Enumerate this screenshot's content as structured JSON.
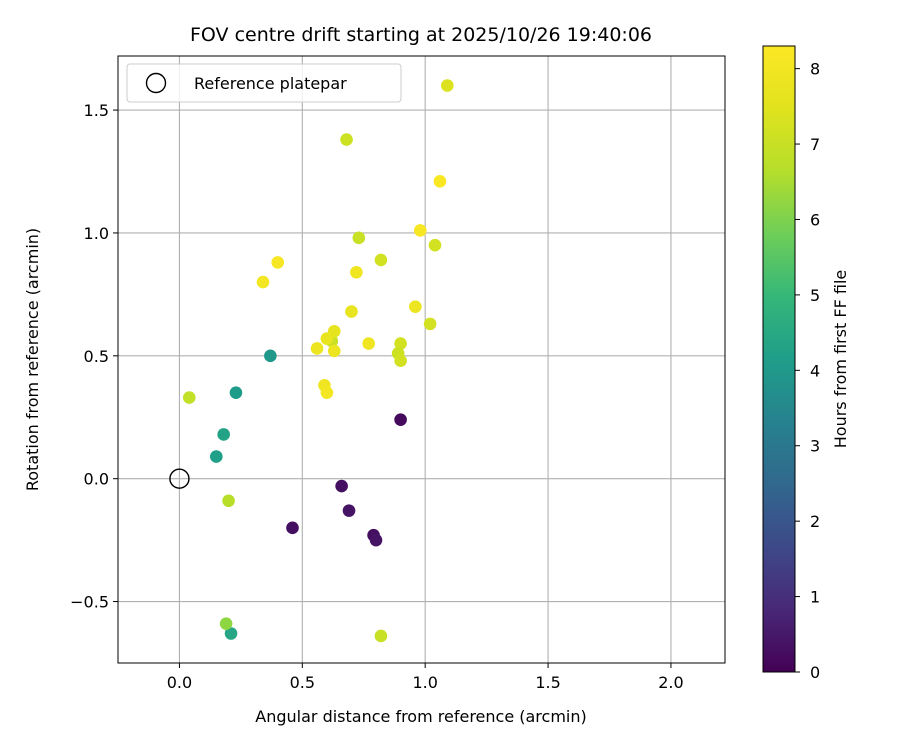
{
  "chart_data": {
    "type": "scatter",
    "title": "FOV centre drift starting at 2025/10/26 19:40:06",
    "xlabel": "Angular distance from reference (arcmin)",
    "ylabel": "Rotation from reference (arcmin)",
    "xlim": [
      -0.25,
      2.22
    ],
    "ylim": [
      -0.75,
      1.72
    ],
    "x_ticks": [
      0.0,
      0.5,
      1.0,
      1.5,
      2.0
    ],
    "x_tick_labels": [
      "0.0",
      "0.5",
      "1.0",
      "1.5",
      "2.0"
    ],
    "y_ticks": [
      -0.5,
      0.0,
      0.5,
      1.0,
      1.5
    ],
    "y_tick_labels": [
      "−0.5",
      "0.0",
      "0.5",
      "1.0",
      "1.5"
    ],
    "grid": true,
    "legend": {
      "placement": "top-left",
      "entries": [
        "Reference platepar"
      ]
    },
    "reference_point": {
      "x": 0.0,
      "y": 0.0,
      "label": "Reference platepar"
    },
    "colorbar": {
      "label": "Hours from first FF file",
      "colormap": "viridis",
      "min": 0,
      "max": 8.3,
      "ticks": [
        0,
        1,
        2,
        3,
        4,
        5,
        6,
        7,
        8
      ],
      "tick_labels": [
        "0",
        "1",
        "2",
        "3",
        "4",
        "5",
        "6",
        "7",
        "8"
      ]
    },
    "points": [
      {
        "x": 0.9,
        "y": 0.24,
        "hours": 0.2
      },
      {
        "x": 0.66,
        "y": -0.03,
        "hours": 0.3
      },
      {
        "x": 0.69,
        "y": -0.13,
        "hours": 0.4
      },
      {
        "x": 0.46,
        "y": -0.2,
        "hours": 0.3
      },
      {
        "x": 0.79,
        "y": -0.23,
        "hours": 0.3
      },
      {
        "x": 0.8,
        "y": -0.25,
        "hours": 0.4
      },
      {
        "x": 0.37,
        "y": 0.5,
        "hours": 4.0
      },
      {
        "x": 0.23,
        "y": 0.35,
        "hours": 4.1
      },
      {
        "x": 0.18,
        "y": 0.18,
        "hours": 4.3
      },
      {
        "x": 0.15,
        "y": 0.09,
        "hours": 4.2
      },
      {
        "x": 0.21,
        "y": -0.63,
        "hours": 4.4
      },
      {
        "x": 0.19,
        "y": -0.59,
        "hours": 6.2
      },
      {
        "x": 0.2,
        "y": -0.09,
        "hours": 6.7
      },
      {
        "x": 0.04,
        "y": 0.33,
        "hours": 6.9
      },
      {
        "x": 0.82,
        "y": -0.64,
        "hours": 7.0
      },
      {
        "x": 0.68,
        "y": 1.38,
        "hours": 7.1
      },
      {
        "x": 0.73,
        "y": 0.98,
        "hours": 7.0
      },
      {
        "x": 0.82,
        "y": 0.89,
        "hours": 7.2
      },
      {
        "x": 1.04,
        "y": 0.95,
        "hours": 7.2
      },
      {
        "x": 1.02,
        "y": 0.63,
        "hours": 7.2
      },
      {
        "x": 0.9,
        "y": 0.55,
        "hours": 7.2
      },
      {
        "x": 0.89,
        "y": 0.51,
        "hours": 7.1
      },
      {
        "x": 0.9,
        "y": 0.48,
        "hours": 7.2
      },
      {
        "x": 0.62,
        "y": 0.56,
        "hours": 7.0
      },
      {
        "x": 1.09,
        "y": 1.6,
        "hours": 7.4
      },
      {
        "x": 0.63,
        "y": 0.6,
        "hours": 7.6
      },
      {
        "x": 0.6,
        "y": 0.57,
        "hours": 7.7
      },
      {
        "x": 0.7,
        "y": 0.68,
        "hours": 7.7
      },
      {
        "x": 0.63,
        "y": 0.52,
        "hours": 7.8
      },
      {
        "x": 0.56,
        "y": 0.53,
        "hours": 7.8
      },
      {
        "x": 0.96,
        "y": 0.7,
        "hours": 7.8
      },
      {
        "x": 0.72,
        "y": 0.84,
        "hours": 7.9
      },
      {
        "x": 0.77,
        "y": 0.55,
        "hours": 7.9
      },
      {
        "x": 0.59,
        "y": 0.38,
        "hours": 7.9
      },
      {
        "x": 0.6,
        "y": 0.35,
        "hours": 8.0
      },
      {
        "x": 0.34,
        "y": 0.8,
        "hours": 8.0
      },
      {
        "x": 0.4,
        "y": 0.88,
        "hours": 8.1
      },
      {
        "x": 0.98,
        "y": 1.01,
        "hours": 8.1
      },
      {
        "x": 1.06,
        "y": 1.21,
        "hours": 8.2
      }
    ]
  }
}
